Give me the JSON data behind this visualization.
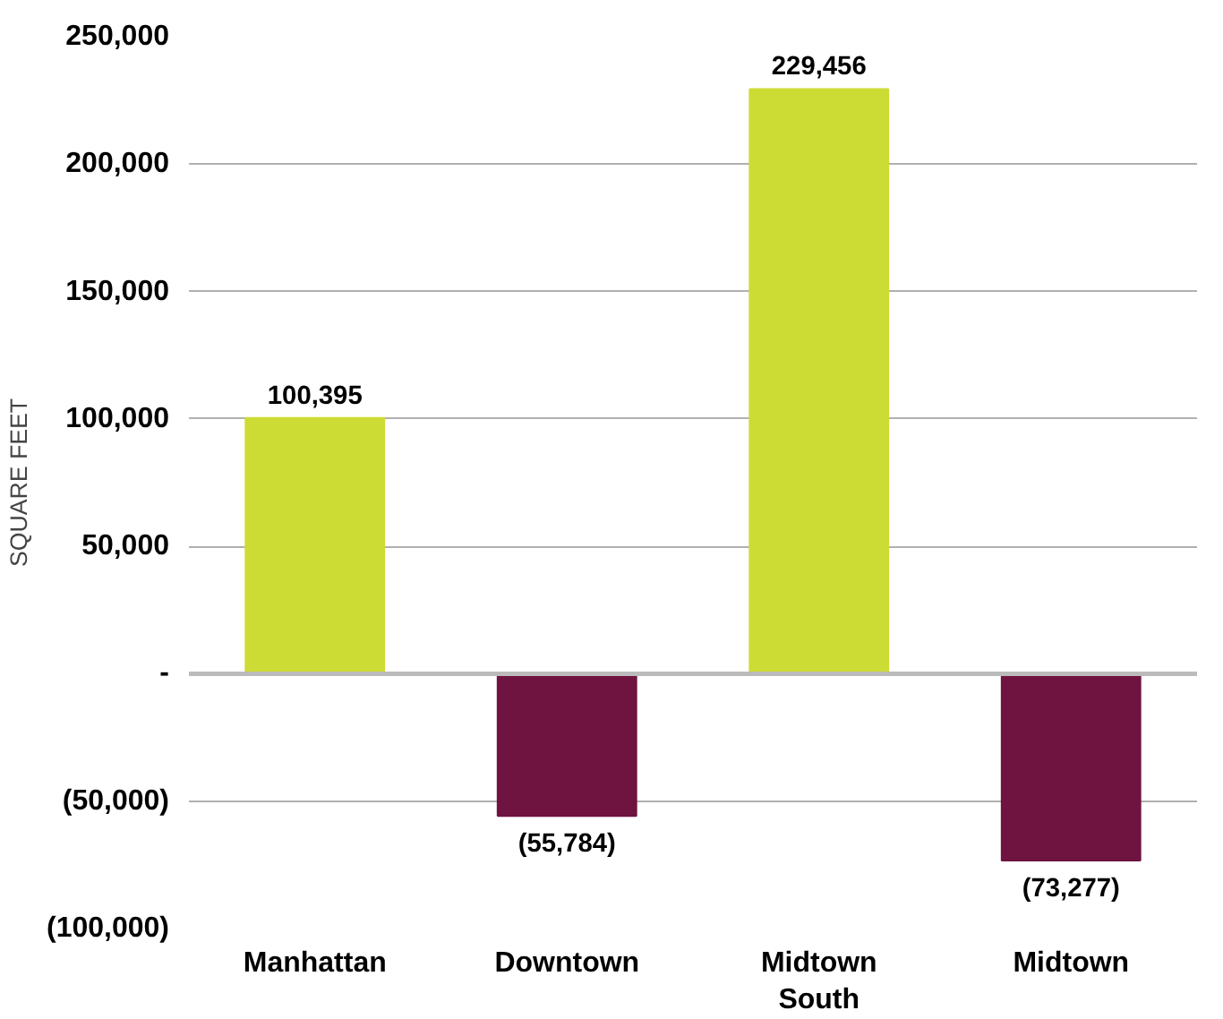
{
  "chart_data": {
    "type": "bar",
    "ylabel": "SQUARE FEET",
    "categories": [
      "Manhattan",
      "Downtown",
      "Midtown South",
      "Midtown"
    ],
    "values": [
      100395,
      -55784,
      229456,
      -73277
    ],
    "colors": [
      "#cddc34",
      "#6f1340",
      "#cddc34",
      "#6f1340"
    ],
    "value_labels": [
      "100,395",
      "(55,784)",
      "229,456",
      "(73,277)"
    ],
    "ylim": [
      -100000,
      250000
    ],
    "yticks": [
      {
        "value": -100000,
        "label": "(100,000)"
      },
      {
        "value": -50000,
        "label": "(50,000)"
      },
      {
        "value": 0,
        "label": "-"
      },
      {
        "value": 50000,
        "label": "50,000"
      },
      {
        "value": 100000,
        "label": "100,000"
      },
      {
        "value": 150000,
        "label": "150,000"
      },
      {
        "value": 200000,
        "label": "200,000"
      },
      {
        "value": 250000,
        "label": "250,000"
      }
    ],
    "grid": "y"
  }
}
